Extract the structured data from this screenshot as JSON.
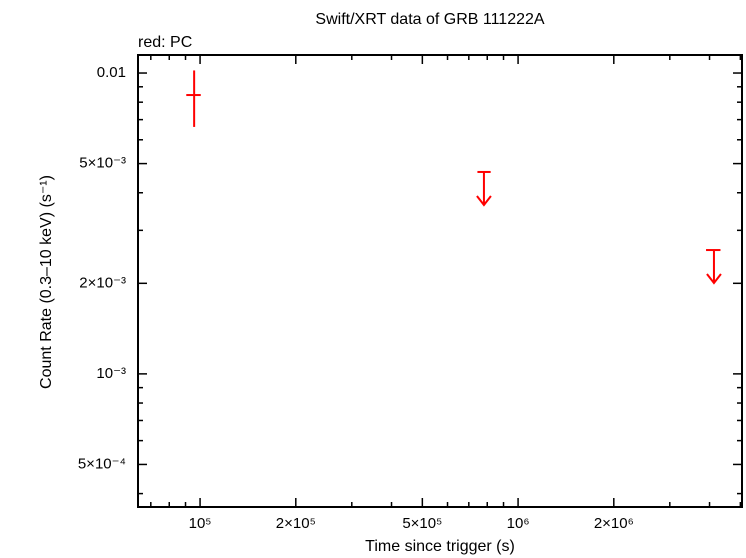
{
  "chart_data": {
    "type": "scatter",
    "title": "Swift/XRT data of GRB 111222A",
    "annotation": "red: PC",
    "x_label": "Time since trigger (s)",
    "y_label": "Count Rate (0.3–10 keV) (s⁻¹)",
    "xscale": "log",
    "yscale": "log",
    "xlim": [
      63800,
      5060000
    ],
    "ylim": [
      0.000361,
      0.01148
    ],
    "xticks": [
      {
        "value": 100000,
        "label": "10⁵"
      },
      {
        "value": 200000,
        "label": "2×10⁵"
      },
      {
        "value": 500000,
        "label": "5×10⁵"
      },
      {
        "value": 1000000,
        "label": "10⁶"
      },
      {
        "value": 2000000,
        "label": "2×10⁶"
      }
    ],
    "yticks": [
      {
        "value": 0.0005,
        "label": "5×10⁻⁴"
      },
      {
        "value": 0.001,
        "label": "10⁻³"
      },
      {
        "value": 0.002,
        "label": "2×10⁻³"
      },
      {
        "value": 0.005,
        "label": "5×10⁻³"
      },
      0.01
    ],
    "xminorticks": [
      70000,
      80000,
      90000,
      300000,
      400000,
      600000,
      700000,
      800000,
      900000,
      3000000,
      4000000,
      5000000
    ],
    "yminorticks": [
      0.0004,
      0.0006,
      0.0007,
      0.0008,
      0.0009,
      0.003,
      0.004,
      0.006,
      0.007,
      0.008,
      0.009
    ],
    "color": "#ff0000",
    "points": {
      "x": [
        95800
      ],
      "x_low": [
        90500
      ],
      "x_high": [
        100500
      ],
      "values": [
        0.00845
      ],
      "y_low": [
        0.00662
      ],
      "y_high": [
        0.0102
      ]
    },
    "upper_limits": {
      "x": [
        781000,
        4130000
      ],
      "x_low": [
        745000,
        3900000
      ],
      "x_high": [
        820000,
        4330000
      ],
      "values": [
        0.00469,
        0.00258
      ]
    }
  }
}
